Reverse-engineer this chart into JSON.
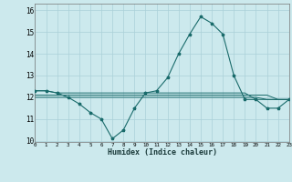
{
  "background_color": "#cce9ed",
  "grid_color": "#aad0d8",
  "line_color": "#1a6b6b",
  "xlabel": "Humidex (Indice chaleur)",
  "xlim": [
    0,
    23
  ],
  "ylim": [
    9.95,
    16.3
  ],
  "yticks": [
    10,
    11,
    12,
    13,
    14,
    15,
    16
  ],
  "xticks": [
    0,
    1,
    2,
    3,
    4,
    5,
    6,
    7,
    8,
    9,
    10,
    11,
    12,
    13,
    14,
    15,
    16,
    17,
    18,
    19,
    20,
    21,
    22,
    23
  ],
  "hours": [
    0,
    1,
    2,
    3,
    4,
    5,
    6,
    7,
    8,
    9,
    10,
    11,
    12,
    13,
    14,
    15,
    16,
    17,
    18,
    19,
    20,
    21,
    22,
    23
  ],
  "main_series": [
    12.3,
    12.3,
    12.2,
    12.0,
    11.7,
    11.3,
    11.0,
    10.1,
    10.5,
    11.5,
    12.2,
    12.3,
    12.9,
    14.0,
    14.9,
    15.7,
    15.4,
    14.9,
    13.0,
    11.9,
    11.9,
    11.5,
    11.5,
    11.9
  ],
  "flat1": [
    12.3,
    12.3,
    12.2,
    12.2,
    12.2,
    12.2,
    12.2,
    12.2,
    12.2,
    12.2,
    12.2,
    12.2,
    12.2,
    12.2,
    12.2,
    12.2,
    12.2,
    12.2,
    12.2,
    12.2,
    11.9,
    11.9,
    11.9,
    11.9
  ],
  "flat2": [
    12.0,
    12.0,
    12.0,
    12.0,
    12.0,
    12.0,
    12.0,
    12.0,
    12.0,
    12.0,
    12.0,
    12.0,
    12.0,
    12.0,
    12.0,
    12.0,
    12.0,
    12.0,
    12.0,
    12.0,
    12.0,
    11.9,
    11.9,
    11.9
  ],
  "flat3": [
    12.1,
    12.1,
    12.1,
    12.1,
    12.1,
    12.1,
    12.1,
    12.1,
    12.1,
    12.1,
    12.1,
    12.1,
    12.1,
    12.1,
    12.1,
    12.1,
    12.1,
    12.1,
    12.1,
    12.1,
    12.1,
    12.1,
    11.9,
    11.9
  ]
}
